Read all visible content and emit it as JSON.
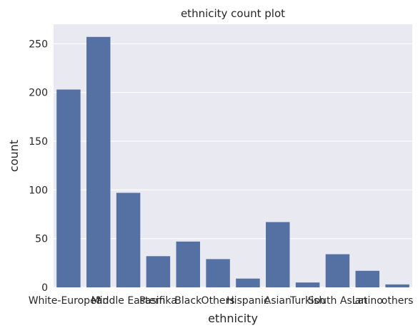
{
  "chart_data": {
    "type": "bar",
    "title": "ethnicity count plot",
    "xlabel": "ethnicity",
    "ylabel": "count",
    "categories": [
      "White-European",
      "?",
      "Middle Eastern",
      "Pasifika",
      "Black",
      "Others",
      "Hispanic",
      "Asian",
      "Turkish",
      "South Asian",
      "Latino",
      "others"
    ],
    "values": [
      203,
      257,
      97,
      32,
      47,
      29,
      9,
      67,
      5,
      34,
      17,
      3
    ],
    "yticks": [
      0,
      50,
      100,
      150,
      200,
      250
    ],
    "ylim": [
      0,
      270
    ],
    "grid": true,
    "legend": "none",
    "colors": {
      "bar": "#5571a4",
      "plot_background": "#e9e9f1",
      "grid": "#ffffff",
      "page_background": "#ffffff",
      "text": "#262626"
    }
  }
}
